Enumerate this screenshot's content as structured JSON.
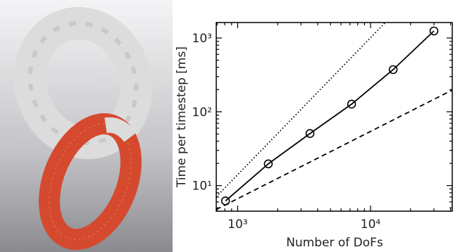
{
  "chart_data": {
    "type": "line",
    "x_label": "Number of DoFs",
    "y_label": "Time per timestep [ms]",
    "log_x": true,
    "log_y": true,
    "xlim": [
      690,
      41200
    ],
    "ylim": [
      4.5,
      1620
    ],
    "xticks": [
      {
        "value": 1000,
        "label": "10³"
      },
      {
        "value": 10000,
        "label": "10⁴"
      }
    ],
    "yticks": [
      {
        "value": 10,
        "label": "10¹"
      },
      {
        "value": 100,
        "label": "10²"
      },
      {
        "value": 1000,
        "label": "10³"
      }
    ],
    "xminor_ticks": [
      700,
      800,
      900,
      2000,
      3000,
      4000,
      5000,
      6000,
      7000,
      8000,
      9000,
      20000,
      30000,
      40000
    ],
    "yminor_ticks": [
      5,
      6,
      7,
      8,
      9,
      20,
      30,
      40,
      50,
      60,
      70,
      80,
      90,
      200,
      300,
      400,
      500,
      600,
      700,
      800,
      900
    ],
    "series": [
      {
        "color": "#000000",
        "line_style": "solid",
        "marker": "circle",
        "x": [
          810,
          1700,
          3500,
          7200,
          14800,
          30000
        ],
        "values": [
          6.2,
          19.7,
          50.7,
          127,
          373,
          1245
        ]
      },
      {
        "color": "#000000",
        "line_style": "dotted",
        "x": [
          690,
          12900
        ],
        "values": [
          7.05,
          1620
        ]
      },
      {
        "color": "#000000",
        "line_style": "dashed",
        "x": [
          690,
          41200
        ],
        "values": [
          4.74,
          197
        ]
      }
    ]
  }
}
